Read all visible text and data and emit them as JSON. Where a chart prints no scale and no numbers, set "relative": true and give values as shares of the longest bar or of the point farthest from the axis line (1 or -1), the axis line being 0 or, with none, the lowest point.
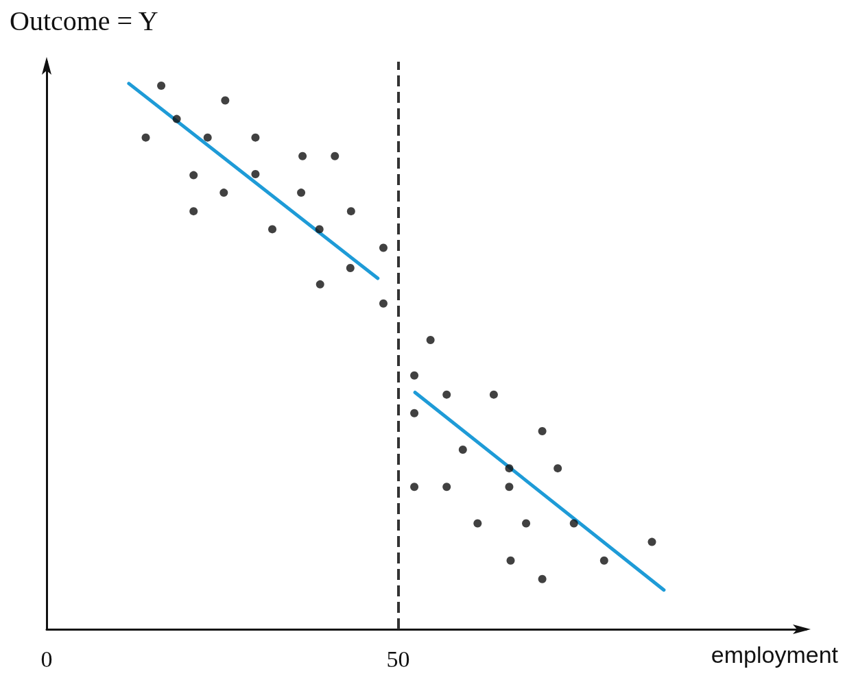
{
  "chart_data": {
    "type": "line",
    "xlabel": "employment",
    "ylabel": "Outcome = Y",
    "relative": true,
    "xlim": [
      0,
      108
    ],
    "xticks": [
      0,
      50
    ],
    "grid": false,
    "marker": "none",
    "series": [
      {
        "type": "scatter",
        "marker": "circle",
        "color": "#111111",
        "x": [
          16.3,
          14.1,
          18.5,
          25.4,
          22.9,
          29.7,
          20.9,
          29.7,
          36.4,
          41.0,
          25.2,
          36.2,
          20.9,
          43.3,
          32.1,
          38.8,
          47.9,
          43.2,
          38.9,
          47.9
        ],
        "values": [
          0.996,
          0.901,
          0.935,
          0.969,
          0.901,
          0.901,
          0.832,
          0.834,
          0.867,
          0.867,
          0.8,
          0.8,
          0.766,
          0.766,
          0.733,
          0.733,
          0.699,
          0.662,
          0.632,
          0.597
        ]
      },
      {
        "type": "scatter",
        "marker": "circle",
        "color": "#111111",
        "x": [
          54.6,
          52.3,
          56.9,
          63.6,
          52.3,
          70.5,
          59.2,
          65.8,
          72.7,
          52.3,
          56.9,
          65.8,
          61.3,
          68.2,
          75.0,
          86.1,
          66.0,
          79.3,
          70.5
        ],
        "values": [
          0.53,
          0.465,
          0.43,
          0.43,
          0.396,
          0.363,
          0.329,
          0.295,
          0.295,
          0.261,
          0.261,
          0.261,
          0.194,
          0.194,
          0.194,
          0.16,
          0.126,
          0.126,
          0.092
        ]
      },
      {
        "color": "#1e9bd7",
        "x": [
          11.7,
          47.1
        ],
        "values": [
          1.0,
          0.643
        ]
      },
      {
        "color": "#1e9bd7",
        "x": [
          52.4,
          87.8
        ],
        "values": [
          0.434,
          0.072
        ]
      }
    ],
    "ref_lines": [
      {
        "axis": "x",
        "value": 50,
        "color": "#333333",
        "line_style": "dashed"
      }
    ]
  }
}
